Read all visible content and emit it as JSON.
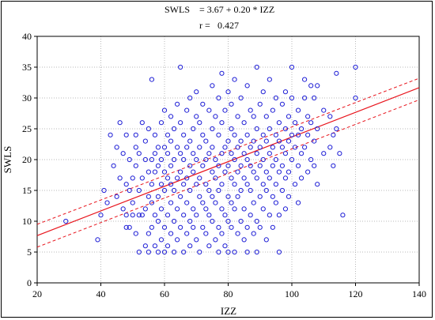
{
  "chart_data": {
    "type": "scatter",
    "annotation": {
      "equation_lhs": "SWLS",
      "equation_rhs": "= 3.67 + 0.20 * IZZ",
      "r_label": "r =",
      "r_value": "0.427"
    },
    "xlabel": "IZZ",
    "ylabel": "SWLS",
    "xlim": [
      20,
      140
    ],
    "ylim": [
      0,
      40
    ],
    "xticks": [
      20,
      40,
      60,
      80,
      100,
      120,
      140
    ],
    "yticks": [
      0,
      5,
      10,
      15,
      20,
      25,
      30,
      35,
      40
    ],
    "grid": true,
    "colors": {
      "points": "#1f1fd6",
      "regression": "#e8141c",
      "grid": "#b8b8b8"
    },
    "regression": {
      "intercept": 3.67,
      "slope": 0.2,
      "ci_x": [
        20,
        140
      ],
      "ci_lower": [
        5.8,
        29.7
      ],
      "ci_upper": [
        9.5,
        33.2
      ]
    },
    "points": [
      [
        29,
        10
      ],
      [
        39,
        7
      ],
      [
        40,
        11
      ],
      [
        41,
        15
      ],
      [
        42,
        13
      ],
      [
        43,
        24
      ],
      [
        44,
        19
      ],
      [
        45,
        14
      ],
      [
        45,
        22
      ],
      [
        46,
        17
      ],
      [
        46,
        26
      ],
      [
        47,
        12
      ],
      [
        47,
        21
      ],
      [
        48,
        9
      ],
      [
        48,
        11
      ],
      [
        48,
        16
      ],
      [
        48,
        24
      ],
      [
        49,
        9
      ],
      [
        49,
        15
      ],
      [
        49,
        20
      ],
      [
        50,
        11
      ],
      [
        50,
        13
      ],
      [
        50,
        17
      ],
      [
        51,
        8
      ],
      [
        51,
        19
      ],
      [
        51,
        22
      ],
      [
        51,
        24
      ],
      [
        52,
        5
      ],
      [
        52,
        11
      ],
      [
        52,
        15
      ],
      [
        52,
        21
      ],
      [
        53,
        11
      ],
      [
        53,
        17
      ],
      [
        53,
        26
      ],
      [
        54,
        6
      ],
      [
        54,
        12
      ],
      [
        54,
        20
      ],
      [
        54,
        23
      ],
      [
        55,
        5
      ],
      [
        55,
        8
      ],
      [
        55,
        14
      ],
      [
        55,
        18
      ],
      [
        55,
        25
      ],
      [
        56,
        9
      ],
      [
        56,
        13
      ],
      [
        56,
        16
      ],
      [
        56,
        20
      ],
      [
        56,
        33
      ],
      [
        57,
        6
      ],
      [
        57,
        11
      ],
      [
        57,
        18
      ],
      [
        57,
        21
      ],
      [
        57,
        24
      ],
      [
        58,
        5
      ],
      [
        58,
        10
      ],
      [
        58,
        14
      ],
      [
        58,
        19
      ],
      [
        58,
        22
      ],
      [
        59,
        7
      ],
      [
        59,
        12
      ],
      [
        59,
        16
      ],
      [
        59,
        20
      ],
      [
        59,
        26
      ],
      [
        60,
        5
      ],
      [
        60,
        9
      ],
      [
        60,
        15
      ],
      [
        60,
        18
      ],
      [
        60,
        22
      ],
      [
        60,
        28
      ],
      [
        61,
        6
      ],
      [
        61,
        11
      ],
      [
        61,
        17
      ],
      [
        61,
        21
      ],
      [
        61,
        24
      ],
      [
        62,
        8
      ],
      [
        62,
        13
      ],
      [
        62,
        16
      ],
      [
        62,
        19
      ],
      [
        62,
        23
      ],
      [
        62,
        27
      ],
      [
        63,
        5
      ],
      [
        63,
        10
      ],
      [
        63,
        15
      ],
      [
        63,
        20
      ],
      [
        63,
        25
      ],
      [
        64,
        7
      ],
      [
        64,
        12
      ],
      [
        64,
        17
      ],
      [
        64,
        22
      ],
      [
        64,
        29
      ],
      [
        65,
        9
      ],
      [
        65,
        14
      ],
      [
        65,
        18
      ],
      [
        65,
        21
      ],
      [
        65,
        26
      ],
      [
        65,
        35
      ],
      [
        66,
        5
      ],
      [
        66,
        11
      ],
      [
        66,
        16
      ],
      [
        66,
        20
      ],
      [
        66,
        24
      ],
      [
        67,
        8
      ],
      [
        67,
        13
      ],
      [
        67,
        17
      ],
      [
        67,
        22
      ],
      [
        67,
        28
      ],
      [
        68,
        6
      ],
      [
        68,
        10
      ],
      [
        68,
        15
      ],
      [
        68,
        19
      ],
      [
        68,
        23
      ],
      [
        68,
        30
      ],
      [
        69,
        9
      ],
      [
        69,
        12
      ],
      [
        69,
        18
      ],
      [
        69,
        21
      ],
      [
        69,
        25
      ],
      [
        70,
        7
      ],
      [
        70,
        11
      ],
      [
        70,
        16
      ],
      [
        70,
        20
      ],
      [
        70,
        27
      ],
      [
        70,
        31
      ],
      [
        71,
        5
      ],
      [
        71,
        14
      ],
      [
        71,
        17
      ],
      [
        71,
        22
      ],
      [
        71,
        26
      ],
      [
        72,
        9
      ],
      [
        72,
        13
      ],
      [
        72,
        19
      ],
      [
        72,
        24
      ],
      [
        72,
        29
      ],
      [
        73,
        8
      ],
      [
        73,
        12
      ],
      [
        73,
        16
      ],
      [
        73,
        20
      ],
      [
        73,
        23
      ],
      [
        74,
        6
      ],
      [
        74,
        11
      ],
      [
        74,
        15
      ],
      [
        74,
        21
      ],
      [
        74,
        28
      ],
      [
        75,
        10
      ],
      [
        75,
        14
      ],
      [
        75,
        18
      ],
      [
        75,
        22
      ],
      [
        75,
        25
      ],
      [
        75,
        32
      ],
      [
        76,
        7
      ],
      [
        76,
        13
      ],
      [
        76,
        17
      ],
      [
        76,
        20
      ],
      [
        76,
        27
      ],
      [
        77,
        5
      ],
      [
        77,
        9
      ],
      [
        77,
        15
      ],
      [
        77,
        19
      ],
      [
        77,
        24
      ],
      [
        77,
        30
      ],
      [
        78,
        8
      ],
      [
        78,
        12
      ],
      [
        78,
        16
      ],
      [
        78,
        21
      ],
      [
        78,
        26
      ],
      [
        78,
        34
      ],
      [
        79,
        6
      ],
      [
        79,
        11
      ],
      [
        79,
        18
      ],
      [
        79,
        22
      ],
      [
        79,
        28
      ],
      [
        80,
        5
      ],
      [
        80,
        10
      ],
      [
        80,
        14
      ],
      [
        80,
        19
      ],
      [
        80,
        23
      ],
      [
        80,
        31
      ],
      [
        81,
        9
      ],
      [
        81,
        13
      ],
      [
        81,
        17
      ],
      [
        81,
        21
      ],
      [
        81,
        25
      ],
      [
        81,
        29
      ],
      [
        82,
        5
      ],
      [
        82,
        12
      ],
      [
        82,
        16
      ],
      [
        82,
        20
      ],
      [
        82,
        24
      ],
      [
        82,
        33
      ],
      [
        83,
        8
      ],
      [
        83,
        14
      ],
      [
        83,
        18
      ],
      [
        83,
        22
      ],
      [
        83,
        27
      ],
      [
        84,
        10
      ],
      [
        84,
        15
      ],
      [
        84,
        19
      ],
      [
        84,
        23
      ],
      [
        84,
        30
      ],
      [
        85,
        7
      ],
      [
        85,
        12
      ],
      [
        85,
        17
      ],
      [
        85,
        21
      ],
      [
        85,
        26
      ],
      [
        86,
        5
      ],
      [
        86,
        9
      ],
      [
        86,
        16
      ],
      [
        86,
        20
      ],
      [
        86,
        24
      ],
      [
        86,
        32
      ],
      [
        87,
        11
      ],
      [
        87,
        15
      ],
      [
        87,
        19
      ],
      [
        87,
        22
      ],
      [
        87,
        28
      ],
      [
        88,
        8
      ],
      [
        88,
        13
      ],
      [
        88,
        18
      ],
      [
        88,
        23
      ],
      [
        88,
        27
      ],
      [
        89,
        5
      ],
      [
        89,
        10
      ],
      [
        89,
        17
      ],
      [
        89,
        21
      ],
      [
        89,
        25
      ],
      [
        89,
        35
      ],
      [
        90,
        9
      ],
      [
        90,
        14
      ],
      [
        90,
        19
      ],
      [
        90,
        22
      ],
      [
        90,
        29
      ],
      [
        91,
        12
      ],
      [
        91,
        16
      ],
      [
        91,
        20
      ],
      [
        91,
        24
      ],
      [
        91,
        31
      ],
      [
        92,
        7
      ],
      [
        92,
        15
      ],
      [
        92,
        18
      ],
      [
        92,
        23
      ],
      [
        92,
        27
      ],
      [
        93,
        11
      ],
      [
        93,
        17
      ],
      [
        93,
        21
      ],
      [
        93,
        25
      ],
      [
        93,
        33
      ],
      [
        94,
        9
      ],
      [
        94,
        14
      ],
      [
        94,
        19
      ],
      [
        94,
        22
      ],
      [
        94,
        28
      ],
      [
        95,
        13
      ],
      [
        95,
        16
      ],
      [
        95,
        20
      ],
      [
        95,
        24
      ],
      [
        95,
        30
      ],
      [
        96,
        5
      ],
      [
        96,
        11
      ],
      [
        96,
        18
      ],
      [
        96,
        23
      ],
      [
        96,
        26
      ],
      [
        97,
        15
      ],
      [
        97,
        19
      ],
      [
        97,
        22
      ],
      [
        97,
        29
      ],
      [
        98,
        12
      ],
      [
        98,
        17
      ],
      [
        98,
        21
      ],
      [
        98,
        25
      ],
      [
        98,
        31
      ],
      [
        99,
        14
      ],
      [
        99,
        18
      ],
      [
        99,
        23
      ],
      [
        99,
        27
      ],
      [
        100,
        20
      ],
      [
        100,
        24
      ],
      [
        100,
        30
      ],
      [
        100,
        35
      ],
      [
        101,
        16
      ],
      [
        101,
        22
      ],
      [
        101,
        26
      ],
      [
        102,
        13
      ],
      [
        102,
        19
      ],
      [
        102,
        24
      ],
      [
        102,
        28
      ],
      [
        103,
        17
      ],
      [
        103,
        21
      ],
      [
        103,
        25
      ],
      [
        104,
        22
      ],
      [
        104,
        30
      ],
      [
        104,
        33
      ],
      [
        105,
        18
      ],
      [
        105,
        24
      ],
      [
        105,
        27
      ],
      [
        106,
        20
      ],
      [
        106,
        26
      ],
      [
        106,
        32
      ],
      [
        107,
        19
      ],
      [
        107,
        23
      ],
      [
        107,
        30
      ],
      [
        108,
        16
      ],
      [
        108,
        25
      ],
      [
        108,
        32
      ],
      [
        110,
        21
      ],
      [
        110,
        28
      ],
      [
        112,
        22
      ],
      [
        112,
        27
      ],
      [
        113,
        19
      ],
      [
        113,
        24
      ],
      [
        114,
        25
      ],
      [
        114,
        34
      ],
      [
        115,
        21
      ],
      [
        116,
        11
      ],
      [
        120,
        30
      ],
      [
        120,
        35
      ]
    ]
  }
}
